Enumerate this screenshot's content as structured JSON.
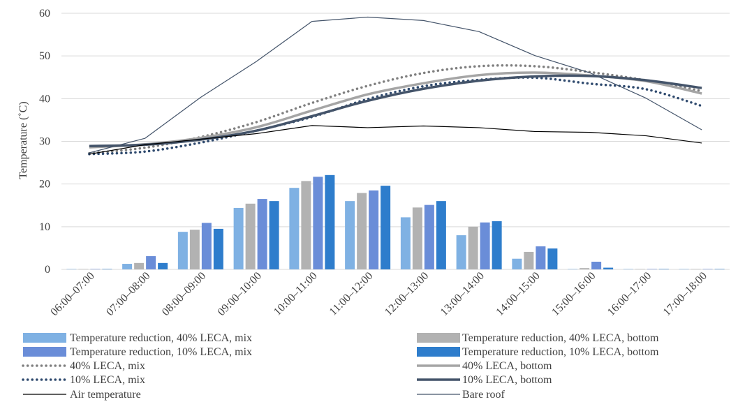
{
  "chart_data": {
    "type": "bar+line",
    "title": "",
    "xlabel": "",
    "ylabel": "Temperature (˚C)",
    "ylim": [
      0,
      60
    ],
    "yticks": [
      0,
      10,
      20,
      30,
      40,
      50,
      60
    ],
    "grid": "horizontal",
    "legend_position": "bottom",
    "categories": [
      "06:00–07:00",
      "07:00–08:00",
      "08:00–09:00",
      "09:00–10:00",
      "10:00–11:00",
      "11:00–12:00",
      "12:00–13:00",
      "13:00–14:00",
      "14:00–15:00",
      "15:00–16:00",
      "16:00–17:00",
      "17:00–18:00"
    ],
    "bar_series": [
      {
        "name": "Temperature reduction, 40% LECA, mix",
        "color": "#7fb1e3",
        "values": [
          0,
          1.3,
          8.8,
          14.4,
          19.1,
          16.0,
          12.2,
          8.0,
          2.5,
          0,
          0,
          0
        ]
      },
      {
        "name": "Temperature reduction,  40% LECA, bottom",
        "color": "#b2b2b2",
        "values": [
          0,
          1.5,
          9.3,
          15.4,
          20.7,
          17.9,
          14.5,
          10.0,
          4.1,
          0.3,
          0,
          0
        ]
      },
      {
        "name": "Temperature reduction,  10% LECA, mix",
        "color": "#6a8dd8",
        "values": [
          0,
          3.1,
          10.9,
          16.5,
          21.7,
          18.5,
          15.1,
          11.0,
          5.4,
          1.8,
          0,
          0
        ]
      },
      {
        "name": "Temperature reduction,  10% LECA, bottom",
        "color": "#2e7dcc",
        "values": [
          0,
          1.5,
          9.5,
          16.0,
          22.1,
          19.6,
          16.0,
          11.3,
          4.9,
          0.4,
          0,
          0
        ]
      }
    ],
    "line_series": [
      {
        "name": "40% LECA, mix",
        "color": "#7f7f7f",
        "style": "dotted",
        "width": 3.5,
        "values": [
          27.2,
          28.5,
          31.0,
          34.5,
          39.0,
          43.0,
          46.0,
          47.6,
          47.6,
          46.2,
          44.3,
          41.8
        ]
      },
      {
        "name": "40% LECA, bottom",
        "color": "#a5a5a5",
        "style": "solid",
        "width": 3.5,
        "values": [
          28.6,
          29.3,
          30.8,
          33.3,
          37.2,
          41.0,
          43.6,
          45.5,
          46.1,
          45.4,
          44.1,
          41.2
        ]
      },
      {
        "name": "10% LECA, mix",
        "color": "#2f4a6e",
        "style": "dotted",
        "width": 3.5,
        "values": [
          27.0,
          27.6,
          29.7,
          32.5,
          35.7,
          39.9,
          42.9,
          44.4,
          44.9,
          43.5,
          42.2,
          38.3
        ]
      },
      {
        "name": "10% LECA, bottom",
        "color": "#44546a",
        "style": "solid",
        "width": 3.5,
        "values": [
          28.9,
          29.2,
          30.4,
          32.5,
          35.9,
          39.5,
          42.3,
          44.2,
          45.2,
          45.3,
          44.3,
          42.5
        ]
      },
      {
        "name": "Air temperature",
        "color": "#000000",
        "style": "solid",
        "width": 1.2,
        "values": [
          27.0,
          29.2,
          30.5,
          31.8,
          33.7,
          33.2,
          33.6,
          33.2,
          32.3,
          32.1,
          31.3,
          29.6
        ]
      },
      {
        "name": "Bare roof",
        "color": "#44546a",
        "style": "solid",
        "width": 1.2,
        "values": [
          27.3,
          30.7,
          40.3,
          48.7,
          58.1,
          59.1,
          58.3,
          55.7,
          50.1,
          46.0,
          40.1,
          32.7
        ]
      }
    ]
  }
}
